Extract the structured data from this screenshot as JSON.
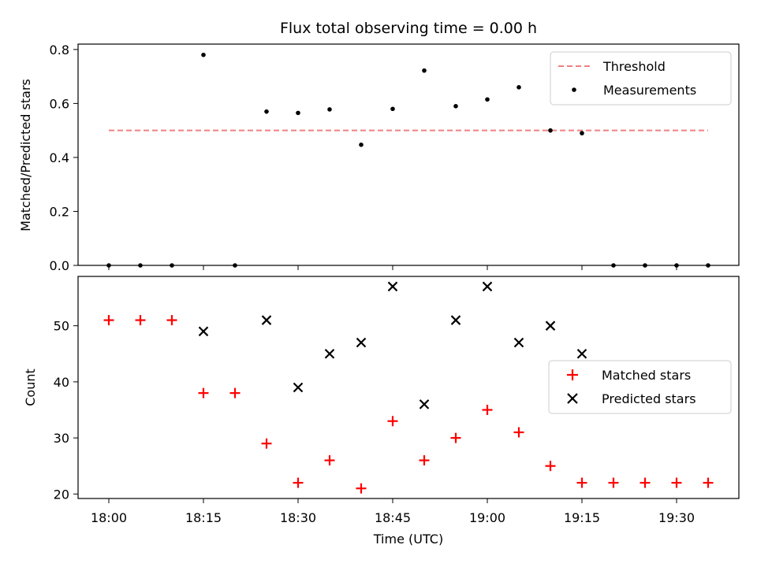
{
  "chart_data": [
    {
      "type": "scatter",
      "title": "Flux total observing time = 0.00 h",
      "xlabel": "",
      "ylabel": "Matched/Predicted stars",
      "ylim": [
        0,
        0.82
      ],
      "yticks": [
        "0.0",
        "0.2",
        "0.4",
        "0.6",
        "0.8"
      ],
      "grid": false,
      "legend": "upper right",
      "threshold": {
        "name": "Threshold",
        "value": 0.5,
        "x_start": "18:00",
        "x_end": "19:35",
        "color": "#f08080"
      },
      "series": [
        {
          "name": "Measurements",
          "color": "#000000",
          "marker": "dot",
          "x": [
            "18:00",
            "18:05",
            "18:10",
            "18:15",
            "18:20",
            "18:25",
            "18:30",
            "18:35",
            "18:40",
            "18:45",
            "18:50",
            "18:55",
            "19:00",
            "19:05",
            "19:10",
            "19:15",
            "19:20",
            "19:25",
            "19:30",
            "19:35"
          ],
          "y": [
            0,
            0,
            0,
            0.78,
            0,
            0.57,
            0.565,
            0.578,
            0.447,
            0.58,
            0.722,
            0.59,
            0.615,
            0.66,
            0.5,
            0.49,
            0,
            0,
            0,
            0
          ]
        }
      ]
    },
    {
      "type": "scatter",
      "title": "",
      "xlabel": "Time (UTC)",
      "ylabel": "Count",
      "ylim": [
        19.2,
        58.8
      ],
      "yticks": [
        "20",
        "30",
        "40",
        "50"
      ],
      "xticks": [
        "18:00",
        "18:15",
        "18:30",
        "18:45",
        "19:00",
        "19:15",
        "19:30"
      ],
      "grid": false,
      "legend": "center right",
      "series": [
        {
          "name": "Matched stars",
          "color": "#ff0000",
          "marker": "plus",
          "x": [
            "18:00",
            "18:05",
            "18:10",
            "18:15",
            "18:20",
            "18:25",
            "18:30",
            "18:35",
            "18:40",
            "18:45",
            "18:50",
            "18:55",
            "19:00",
            "19:05",
            "19:10",
            "19:15",
            "19:20",
            "19:25",
            "19:30",
            "19:35"
          ],
          "y": [
            51,
            51,
            51,
            38,
            38,
            29,
            22,
            26,
            21,
            33,
            26,
            30,
            35,
            31,
            25,
            22,
            22,
            22,
            22,
            22
          ]
        },
        {
          "name": "Predicted stars",
          "color": "#000000",
          "marker": "x",
          "x": [
            "18:15",
            "18:25",
            "18:30",
            "18:35",
            "18:40",
            "18:45",
            "18:50",
            "18:55",
            "19:00",
            "19:05",
            "19:10",
            "19:15"
          ],
          "y": [
            49,
            51,
            39,
            45,
            47,
            57,
            36,
            51,
            57,
            47,
            50,
            45
          ]
        }
      ]
    }
  ]
}
